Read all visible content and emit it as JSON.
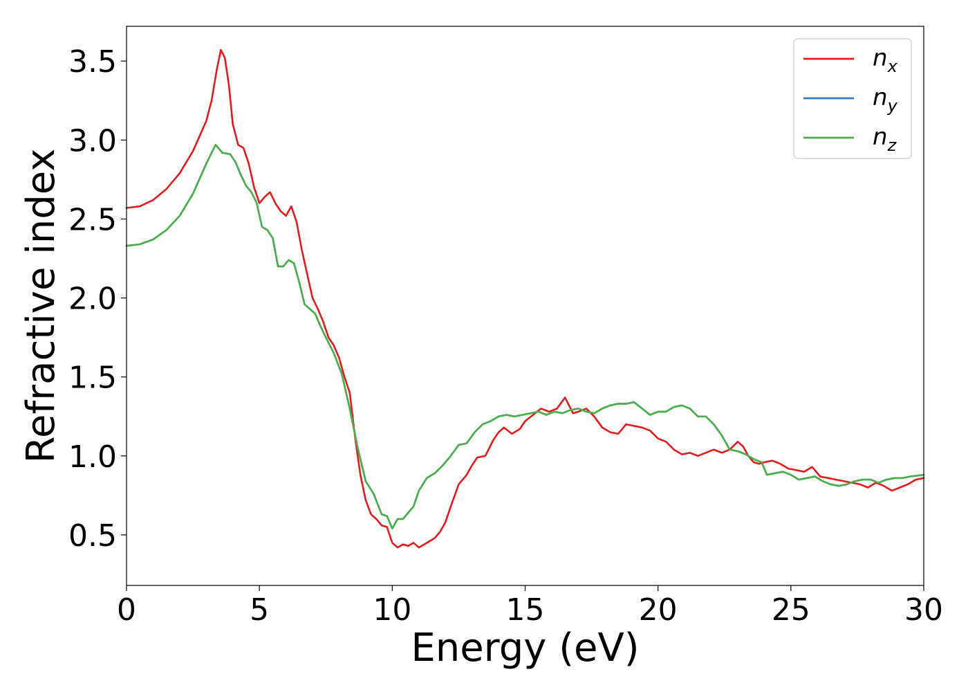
{
  "chart_data": {
    "type": "line",
    "xlabel": "Energy (eV)",
    "ylabel": "Refractive index",
    "xlim": [
      0,
      30
    ],
    "ylim": [
      0.18,
      3.72
    ],
    "x_ticks": [
      0,
      5,
      10,
      15,
      20,
      25,
      30
    ],
    "y_ticks": [
      0.5,
      1.0,
      1.5,
      2.0,
      2.5,
      3.0,
      3.5
    ],
    "grid": false,
    "legend_position": "top-right",
    "series": [
      {
        "name": "n",
        "subscript": "x",
        "color": "#e41a1c",
        "x": [
          0,
          0.5,
          1,
          1.5,
          2,
          2.5,
          3,
          3.2,
          3.4,
          3.55,
          3.7,
          3.85,
          4,
          4.2,
          4.4,
          4.6,
          4.8,
          5,
          5.2,
          5.4,
          5.6,
          5.8,
          6,
          6.2,
          6.4,
          6.6,
          6.8,
          7,
          7.2,
          7.4,
          7.6,
          7.8,
          8,
          8.2,
          8.4,
          8.6,
          8.8,
          9,
          9.2,
          9.4,
          9.6,
          9.8,
          10,
          10.2,
          10.4,
          10.6,
          10.8,
          11,
          11.2,
          11.4,
          11.6,
          11.8,
          12,
          12.2,
          12.5,
          12.8,
          13,
          13.2,
          13.5,
          13.8,
          14,
          14.2,
          14.5,
          14.8,
          15,
          15.3,
          15.6,
          15.9,
          16.2,
          16.5,
          16.8,
          17,
          17.3,
          17.6,
          17.9,
          18.2,
          18.5,
          18.8,
          19.1,
          19.4,
          19.7,
          20,
          20.3,
          20.6,
          20.9,
          21.2,
          21.5,
          21.8,
          22.1,
          22.4,
          22.7,
          23,
          23.2,
          23.4,
          23.6,
          23.8,
          24,
          24.3,
          24.6,
          24.9,
          25.2,
          25.5,
          25.8,
          26.1,
          26.4,
          26.7,
          27,
          27.3,
          27.6,
          27.9,
          28.2,
          28.5,
          28.8,
          29.1,
          29.4,
          29.7,
          30
        ],
        "y": [
          2.57,
          2.58,
          2.62,
          2.69,
          2.79,
          2.93,
          3.12,
          3.25,
          3.45,
          3.57,
          3.52,
          3.35,
          3.1,
          2.97,
          2.95,
          2.85,
          2.7,
          2.6,
          2.64,
          2.67,
          2.6,
          2.55,
          2.52,
          2.58,
          2.48,
          2.3,
          2.15,
          2.0,
          1.93,
          1.85,
          1.75,
          1.7,
          1.62,
          1.5,
          1.4,
          1.12,
          0.88,
          0.72,
          0.63,
          0.6,
          0.56,
          0.55,
          0.45,
          0.42,
          0.44,
          0.43,
          0.45,
          0.42,
          0.44,
          0.46,
          0.48,
          0.52,
          0.58,
          0.68,
          0.82,
          0.88,
          0.94,
          0.99,
          1.0,
          1.1,
          1.15,
          1.18,
          1.14,
          1.17,
          1.22,
          1.26,
          1.3,
          1.28,
          1.3,
          1.37,
          1.27,
          1.28,
          1.3,
          1.25,
          1.18,
          1.15,
          1.14,
          1.2,
          1.19,
          1.18,
          1.16,
          1.11,
          1.09,
          1.04,
          1.01,
          1.02,
          1.0,
          1.02,
          1.04,
          1.02,
          1.04,
          1.09,
          1.06,
          1.0,
          0.96,
          0.95,
          0.96,
          0.97,
          0.95,
          0.92,
          0.91,
          0.9,
          0.93,
          0.87,
          0.86,
          0.85,
          0.84,
          0.83,
          0.82,
          0.8,
          0.83,
          0.81,
          0.78,
          0.8,
          0.82,
          0.85,
          0.86
        ]
      },
      {
        "name": "n",
        "subscript": "y",
        "color": "#377eb8",
        "x": [
          0,
          0.5,
          1,
          1.5,
          2,
          2.5,
          3,
          3.35,
          3.6,
          3.9,
          4.1,
          4.3,
          4.5,
          4.7,
          4.9,
          5.1,
          5.3,
          5.5,
          5.7,
          5.9,
          6.1,
          6.3,
          6.5,
          6.7,
          6.9,
          7.1,
          7.3,
          7.5,
          7.8,
          8.1,
          8.4,
          8.7,
          9,
          9.3,
          9.6,
          9.8,
          10,
          10.2,
          10.4,
          10.6,
          10.8,
          11,
          11.3,
          11.6,
          11.9,
          12.2,
          12.5,
          12.8,
          13.1,
          13.4,
          13.7,
          14,
          14.3,
          14.6,
          14.9,
          15.2,
          15.5,
          15.8,
          16.1,
          16.4,
          16.7,
          17,
          17.3,
          17.6,
          17.9,
          18.2,
          18.5,
          18.8,
          19.1,
          19.4,
          19.7,
          20,
          20.3,
          20.6,
          20.9,
          21.2,
          21.5,
          21.8,
          22.1,
          22.4,
          22.7,
          23,
          23.3,
          23.6,
          23.9,
          24.1,
          24.4,
          24.7,
          25,
          25.3,
          25.6,
          25.9,
          26.2,
          26.5,
          26.8,
          27.1,
          27.4,
          27.7,
          28,
          28.3,
          28.6,
          28.9,
          29.2,
          29.5,
          30
        ],
        "y": [
          2.33,
          2.34,
          2.37,
          2.43,
          2.52,
          2.66,
          2.85,
          2.97,
          2.92,
          2.91,
          2.86,
          2.78,
          2.71,
          2.67,
          2.6,
          2.45,
          2.43,
          2.38,
          2.2,
          2.2,
          2.24,
          2.22,
          2.1,
          1.96,
          1.93,
          1.9,
          1.82,
          1.75,
          1.65,
          1.52,
          1.3,
          1.05,
          0.84,
          0.76,
          0.63,
          0.62,
          0.54,
          0.6,
          0.6,
          0.64,
          0.68,
          0.78,
          0.86,
          0.89,
          0.94,
          1.0,
          1.07,
          1.08,
          1.15,
          1.2,
          1.22,
          1.25,
          1.26,
          1.25,
          1.26,
          1.27,
          1.28,
          1.26,
          1.28,
          1.27,
          1.29,
          1.3,
          1.28,
          1.27,
          1.3,
          1.32,
          1.33,
          1.33,
          1.34,
          1.3,
          1.26,
          1.28,
          1.28,
          1.31,
          1.32,
          1.3,
          1.25,
          1.25,
          1.2,
          1.13,
          1.04,
          1.03,
          1.01,
          0.98,
          0.96,
          0.88,
          0.89,
          0.9,
          0.88,
          0.85,
          0.86,
          0.87,
          0.84,
          0.82,
          0.81,
          0.82,
          0.84,
          0.85,
          0.85,
          0.83,
          0.85,
          0.86,
          0.86,
          0.87,
          0.88
        ]
      },
      {
        "name": "n",
        "subscript": "z",
        "color": "#4daf4a",
        "x": [
          0,
          0.5,
          1,
          1.5,
          2,
          2.5,
          3,
          3.35,
          3.6,
          3.9,
          4.1,
          4.3,
          4.5,
          4.7,
          4.9,
          5.1,
          5.3,
          5.5,
          5.7,
          5.9,
          6.1,
          6.3,
          6.5,
          6.7,
          6.9,
          7.1,
          7.3,
          7.5,
          7.8,
          8.1,
          8.4,
          8.7,
          9,
          9.3,
          9.6,
          9.8,
          10,
          10.2,
          10.4,
          10.6,
          10.8,
          11,
          11.3,
          11.6,
          11.9,
          12.2,
          12.5,
          12.8,
          13.1,
          13.4,
          13.7,
          14,
          14.3,
          14.6,
          14.9,
          15.2,
          15.5,
          15.8,
          16.1,
          16.4,
          16.7,
          17,
          17.3,
          17.6,
          17.9,
          18.2,
          18.5,
          18.8,
          19.1,
          19.4,
          19.7,
          20,
          20.3,
          20.6,
          20.9,
          21.2,
          21.5,
          21.8,
          22.1,
          22.4,
          22.7,
          23,
          23.3,
          23.6,
          23.9,
          24.1,
          24.4,
          24.7,
          25,
          25.3,
          25.6,
          25.9,
          26.2,
          26.5,
          26.8,
          27.1,
          27.4,
          27.7,
          28,
          28.3,
          28.6,
          28.9,
          29.2,
          29.5,
          30
        ],
        "y": [
          2.33,
          2.34,
          2.37,
          2.43,
          2.52,
          2.66,
          2.85,
          2.97,
          2.92,
          2.91,
          2.86,
          2.78,
          2.71,
          2.67,
          2.6,
          2.45,
          2.43,
          2.38,
          2.2,
          2.2,
          2.24,
          2.22,
          2.1,
          1.96,
          1.93,
          1.9,
          1.82,
          1.75,
          1.65,
          1.52,
          1.3,
          1.05,
          0.84,
          0.76,
          0.63,
          0.62,
          0.54,
          0.6,
          0.6,
          0.64,
          0.68,
          0.78,
          0.86,
          0.89,
          0.94,
          1.0,
          1.07,
          1.08,
          1.15,
          1.2,
          1.22,
          1.25,
          1.26,
          1.25,
          1.26,
          1.27,
          1.28,
          1.26,
          1.28,
          1.27,
          1.29,
          1.3,
          1.28,
          1.27,
          1.3,
          1.32,
          1.33,
          1.33,
          1.34,
          1.3,
          1.26,
          1.28,
          1.28,
          1.31,
          1.32,
          1.3,
          1.25,
          1.25,
          1.2,
          1.13,
          1.04,
          1.03,
          1.01,
          0.98,
          0.96,
          0.88,
          0.89,
          0.9,
          0.88,
          0.85,
          0.86,
          0.87,
          0.84,
          0.82,
          0.81,
          0.82,
          0.84,
          0.85,
          0.85,
          0.83,
          0.85,
          0.86,
          0.86,
          0.87,
          0.88
        ]
      }
    ]
  }
}
